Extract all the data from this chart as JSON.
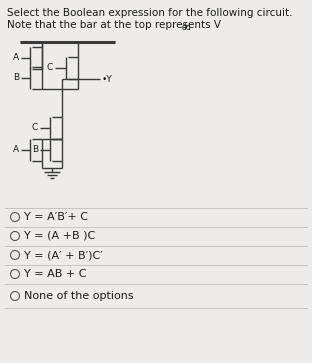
{
  "title_line1": "Select the Boolean expression for the following circuit.",
  "title_line2": "Note that the bar at the top represents V",
  "vdd_sub": "dd",
  "options": [
    "Y = A′B′+ C",
    "Y = (A +B )C",
    "Y = (A′ + B′)C′",
    "Y = AB + C",
    "None of the options"
  ],
  "bg_color": "#edecea",
  "text_color": "#1a1a1a",
  "circuit_color": "#3a3a3a",
  "font_size_title": 7.5,
  "font_size_options": 8,
  "font_size_circuit": 6.5,
  "divider_color": "#c0bcb8",
  "circle_color": "#555555"
}
